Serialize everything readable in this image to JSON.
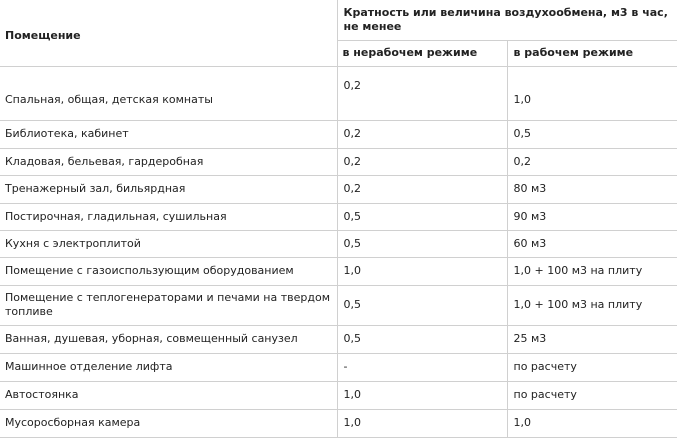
{
  "table": {
    "header": {
      "room": "Помещение",
      "group": "Кратность или величина воздухообмена, м3 в час, не менее",
      "idle": "в нерабочем режиме",
      "work": "в рабочем режиме"
    },
    "rows": [
      [
        "Спальная, общая, детская комнаты",
        "0,2",
        "1,0"
      ],
      [
        "Библиотека, кабинет",
        "0,2",
        "0,5"
      ],
      [
        "Кладовая, бельевая, гардеробная",
        "0,2",
        "0,2"
      ],
      [
        "Тренажерный зал, бильярдная",
        "0,2",
        "80 м3"
      ],
      [
        "Постирочная, гладильная, сушильная",
        "0,5",
        "90 м3"
      ],
      [
        "Кухня с электроплитой",
        "0,5",
        "60 м3"
      ],
      [
        "Помещение с газоиспользующим оборудованием",
        "1,0",
        "1,0 + 100 м3 на плиту"
      ],
      [
        "Помещение с теплогенераторами и печами на твердом топливе",
        "0,5",
        "1,0 + 100 м3 на плиту"
      ],
      [
        "Ванная, душевая, уборная, совмещенный санузел",
        "0,5",
        "25 м3"
      ],
      [
        "Машинное отделение лифта",
        "-",
        "по расчету"
      ],
      [
        "Автостоянка",
        "1,0",
        "по расчету"
      ],
      [
        "Мусоросборная камера",
        "1,0",
        "1,0"
      ]
    ]
  }
}
